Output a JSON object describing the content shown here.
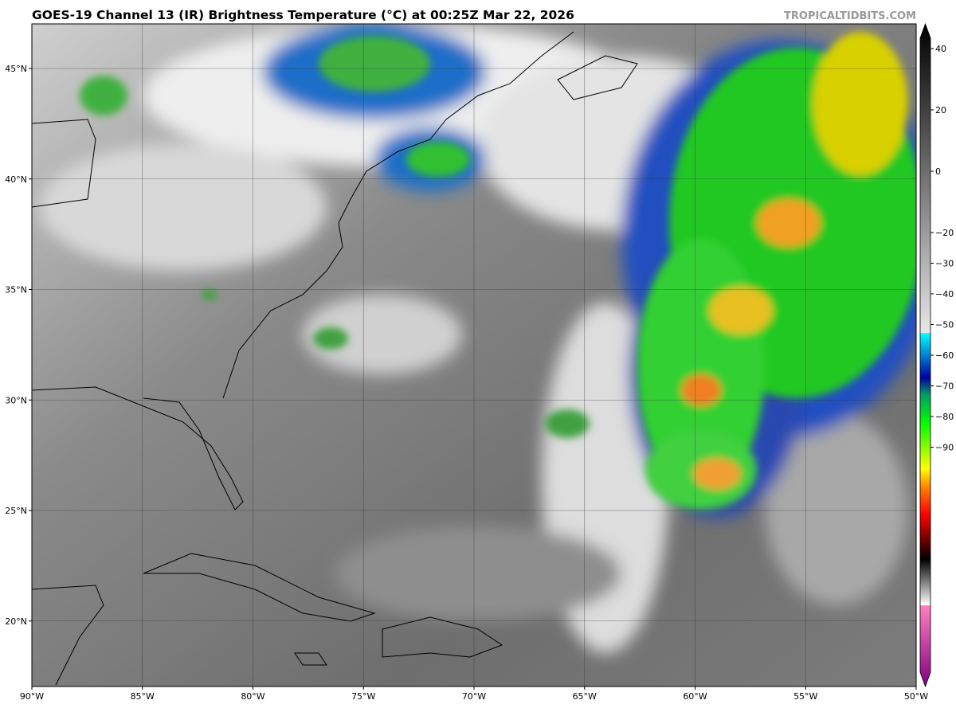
{
  "header": {
    "title": "GOES-19 Channel 13 (IR) Brightness Temperature (°C) at 00:25Z Mar 22, 2026",
    "source": "TROPICALTIDBITS.COM"
  },
  "map": {
    "lon_ticks": [
      {
        "value": -90,
        "label": "90°W"
      },
      {
        "value": -85,
        "label": "85°W"
      },
      {
        "value": -80,
        "label": "80°W"
      },
      {
        "value": -75,
        "label": "75°W"
      },
      {
        "value": -70,
        "label": "70°W"
      },
      {
        "value": -65,
        "label": "65°W"
      },
      {
        "value": -60,
        "label": "60°W"
      },
      {
        "value": -55,
        "label": "55°W"
      },
      {
        "value": -50,
        "label": "50°W"
      }
    ],
    "lat_ticks": [
      {
        "value": 45,
        "label": "45°N"
      },
      {
        "value": 40,
        "label": "40°N"
      },
      {
        "value": 35,
        "label": "35°N"
      },
      {
        "value": 30,
        "label": "30°N"
      },
      {
        "value": 25,
        "label": "25°N"
      },
      {
        "value": 20,
        "label": "20°N"
      }
    ]
  },
  "colorbar": {
    "ticks": [
      {
        "value": 40,
        "label": "40"
      },
      {
        "value": 20,
        "label": "20"
      },
      {
        "value": 0,
        "label": "0"
      },
      {
        "value": -20,
        "label": "−20"
      },
      {
        "value": -30,
        "label": "−30"
      },
      {
        "value": -40,
        "label": "−40"
      },
      {
        "value": -50,
        "label": "−50"
      },
      {
        "value": -60,
        "label": "−60"
      },
      {
        "value": -70,
        "label": "−70"
      },
      {
        "value": -80,
        "label": "−80"
      },
      {
        "value": -90,
        "label": "−90"
      }
    ]
  }
}
